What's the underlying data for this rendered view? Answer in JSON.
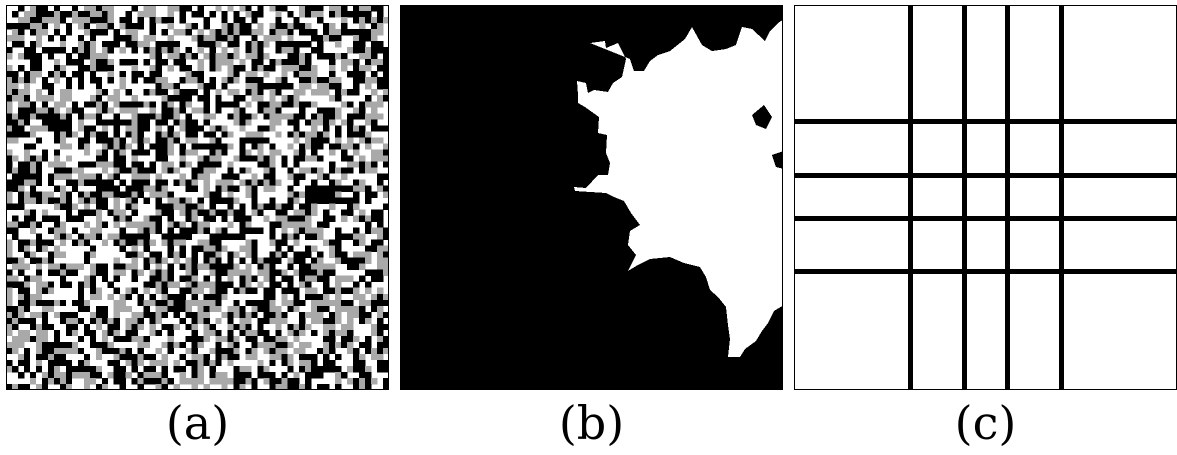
{
  "panels": [
    {
      "id": "a",
      "caption": "(a)",
      "kind": "random-grid",
      "grid_cells": 64,
      "states": [
        "white",
        "gray",
        "black"
      ],
      "colors": {
        "white": "#ffffff",
        "gray": "#a9a9a9",
        "black": "#000000"
      }
    },
    {
      "id": "b",
      "caption": "(b)",
      "kind": "binary-cluster",
      "colors": {
        "background": "#000000",
        "cluster": "#ffffff"
      }
    },
    {
      "id": "c",
      "caption": "(c)",
      "kind": "line-grid",
      "colors": {
        "background": "#ffffff",
        "lines": "#000000"
      }
    }
  ]
}
